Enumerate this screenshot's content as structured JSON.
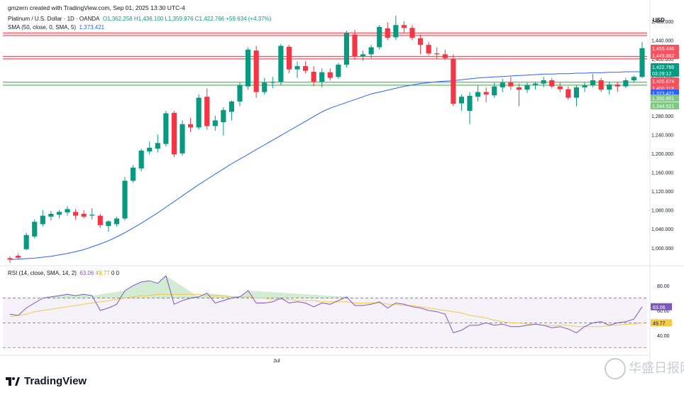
{
  "header": {
    "creator_line": "gmzern created with TradingView.com, Sep 01, 2025 13:30 UTC-4",
    "currency": "USD"
  },
  "legend": {
    "main": {
      "symbol": "Platinum / U.S. Dollar · 1D · OANDA",
      "open": "O1,362.258",
      "high": "H1,436.100",
      "low": "L1,359.976",
      "close": "C1,422.766",
      "change": "+59.634 (+4.37%)"
    },
    "sma": {
      "label": "SMA (50, close, 0, SMA, 5)",
      "value": "1,373.421"
    },
    "rsi": {
      "label": "RSI (14, close, SMA, 14, 2)",
      "value1": "63.06",
      "value2": "49.77",
      "value3": "0",
      "value4": "0"
    }
  },
  "footer": {
    "brand": "TradingView",
    "watermark": "华盛日报网"
  },
  "colors": {
    "up": "#089981",
    "down": "#f23645",
    "sma": "#2962ff",
    "rsi": "#7e57c2",
    "rsi_ma": "#f7c948",
    "resistance": "#f23645",
    "support": "#4caf50"
  },
  "chart_data": [
    {
      "type": "candlestick",
      "title": "Platinum / U.S. Dollar · 1D · OANDA",
      "y_axis": {
        "ticks": [
          "1,480.000",
          "1,440.000",
          "1,400.000",
          "1,360.000",
          "1,320.000",
          "1,280.000",
          "1,240.000",
          "1,200.000",
          "1,160.000",
          "1,120.000",
          "1,080.000",
          "1,040.000",
          "1,000.000"
        ],
        "range": [
          965,
          1495
        ]
      },
      "x_axis": {
        "labels": [
          "Jul"
        ]
      },
      "price_labels": [
        {
          "text": "1,455.446",
          "kind": "resistance",
          "value": 1455.446
        },
        {
          "text": "1,449.882",
          "kind": "resistance",
          "value": 1449.882
        },
        {
          "text": "1,422.766",
          "kind": "last",
          "value": 1422.766
        },
        {
          "text": "03:29:12",
          "kind": "countdown",
          "value": 1422.766
        },
        {
          "text": "1,405.674",
          "kind": "resistance",
          "value": 1405.674
        },
        {
          "text": "1,400.113",
          "kind": "resistance",
          "value": 1400.113
        },
        {
          "text": "1,373.421",
          "kind": "sma",
          "value": 1373.421
        },
        {
          "text": "1,350.951",
          "kind": "support",
          "value": 1350.951
        },
        {
          "text": "1,344.521",
          "kind": "support",
          "value": 1344.521
        }
      ],
      "zones": [
        {
          "kind": "resistance",
          "from": 1449.882,
          "to": 1455.446
        },
        {
          "kind": "resistance",
          "from": 1400.113,
          "to": 1405.674
        },
        {
          "kind": "support",
          "from": 1344.521,
          "to": 1350.951
        }
      ],
      "candles": [
        {
          "o": 978,
          "h": 982,
          "l": 968,
          "c": 975
        },
        {
          "o": 983,
          "h": 988,
          "l": 975,
          "c": 979
        },
        {
          "o": 997,
          "h": 1032,
          "l": 995,
          "c": 1027
        },
        {
          "o": 1024,
          "h": 1060,
          "l": 1020,
          "c": 1055
        },
        {
          "o": 1050,
          "h": 1080,
          "l": 1045,
          "c": 1068
        },
        {
          "o": 1066,
          "h": 1078,
          "l": 1058,
          "c": 1072
        },
        {
          "o": 1070,
          "h": 1080,
          "l": 1062,
          "c": 1076
        },
        {
          "o": 1075,
          "h": 1088,
          "l": 1068,
          "c": 1082
        },
        {
          "o": 1076,
          "h": 1082,
          "l": 1060,
          "c": 1068
        },
        {
          "o": 1072,
          "h": 1080,
          "l": 1062,
          "c": 1066
        },
        {
          "o": 1068,
          "h": 1084,
          "l": 1060,
          "c": 1070
        },
        {
          "o": 1068,
          "h": 1072,
          "l": 1042,
          "c": 1048
        },
        {
          "o": 1046,
          "h": 1058,
          "l": 1034,
          "c": 1056
        },
        {
          "o": 1050,
          "h": 1066,
          "l": 1045,
          "c": 1062
        },
        {
          "o": 1062,
          "h": 1150,
          "l": 1058,
          "c": 1142
        },
        {
          "o": 1142,
          "h": 1175,
          "l": 1138,
          "c": 1170
        },
        {
          "o": 1168,
          "h": 1210,
          "l": 1162,
          "c": 1206
        },
        {
          "o": 1204,
          "h": 1225,
          "l": 1198,
          "c": 1212
        },
        {
          "o": 1210,
          "h": 1240,
          "l": 1202,
          "c": 1222
        },
        {
          "o": 1220,
          "h": 1290,
          "l": 1215,
          "c": 1285
        },
        {
          "o": 1286,
          "h": 1290,
          "l": 1192,
          "c": 1198
        },
        {
          "o": 1200,
          "h": 1270,
          "l": 1195,
          "c": 1262
        },
        {
          "o": 1262,
          "h": 1275,
          "l": 1245,
          "c": 1255
        },
        {
          "o": 1255,
          "h": 1325,
          "l": 1250,
          "c": 1318
        },
        {
          "o": 1320,
          "h": 1338,
          "l": 1250,
          "c": 1258
        },
        {
          "o": 1258,
          "h": 1280,
          "l": 1248,
          "c": 1270
        },
        {
          "o": 1266,
          "h": 1298,
          "l": 1238,
          "c": 1292
        },
        {
          "o": 1288,
          "h": 1312,
          "l": 1270,
          "c": 1310
        },
        {
          "o": 1310,
          "h": 1350,
          "l": 1300,
          "c": 1345
        },
        {
          "o": 1342,
          "h": 1425,
          "l": 1335,
          "c": 1420
        },
        {
          "o": 1418,
          "h": 1428,
          "l": 1318,
          "c": 1330
        },
        {
          "o": 1330,
          "h": 1360,
          "l": 1325,
          "c": 1350
        },
        {
          "o": 1350,
          "h": 1362,
          "l": 1338,
          "c": 1352
        },
        {
          "o": 1352,
          "h": 1432,
          "l": 1345,
          "c": 1428
        },
        {
          "o": 1426,
          "h": 1430,
          "l": 1370,
          "c": 1378
        },
        {
          "o": 1378,
          "h": 1395,
          "l": 1360,
          "c": 1385
        },
        {
          "o": 1385,
          "h": 1395,
          "l": 1370,
          "c": 1375
        },
        {
          "o": 1373,
          "h": 1385,
          "l": 1342,
          "c": 1352
        },
        {
          "o": 1352,
          "h": 1380,
          "l": 1340,
          "c": 1372
        },
        {
          "o": 1372,
          "h": 1380,
          "l": 1355,
          "c": 1360
        },
        {
          "o": 1362,
          "h": 1392,
          "l": 1358,
          "c": 1388
        },
        {
          "o": 1388,
          "h": 1460,
          "l": 1382,
          "c": 1455
        },
        {
          "o": 1452,
          "h": 1462,
          "l": 1398,
          "c": 1406
        },
        {
          "o": 1406,
          "h": 1418,
          "l": 1396,
          "c": 1410
        },
        {
          "o": 1410,
          "h": 1430,
          "l": 1402,
          "c": 1425
        },
        {
          "o": 1425,
          "h": 1472,
          "l": 1420,
          "c": 1468
        },
        {
          "o": 1465,
          "h": 1478,
          "l": 1440,
          "c": 1445
        },
        {
          "o": 1446,
          "h": 1492,
          "l": 1440,
          "c": 1472
        },
        {
          "o": 1472,
          "h": 1480,
          "l": 1456,
          "c": 1466
        },
        {
          "o": 1466,
          "h": 1472,
          "l": 1440,
          "c": 1445
        },
        {
          "o": 1444,
          "h": 1452,
          "l": 1410,
          "c": 1430
        },
        {
          "o": 1430,
          "h": 1436,
          "l": 1408,
          "c": 1412
        },
        {
          "o": 1412,
          "h": 1425,
          "l": 1400,
          "c": 1410
        },
        {
          "o": 1410,
          "h": 1420,
          "l": 1398,
          "c": 1402
        },
        {
          "o": 1400,
          "h": 1410,
          "l": 1300,
          "c": 1305
        },
        {
          "o": 1306,
          "h": 1325,
          "l": 1290,
          "c": 1320
        },
        {
          "o": 1290,
          "h": 1330,
          "l": 1262,
          "c": 1322
        },
        {
          "o": 1320,
          "h": 1345,
          "l": 1310,
          "c": 1330
        },
        {
          "o": 1330,
          "h": 1340,
          "l": 1308,
          "c": 1325
        },
        {
          "o": 1323,
          "h": 1350,
          "l": 1318,
          "c": 1342
        },
        {
          "o": 1340,
          "h": 1358,
          "l": 1330,
          "c": 1350
        },
        {
          "o": 1350,
          "h": 1362,
          "l": 1335,
          "c": 1342
        },
        {
          "o": 1340,
          "h": 1348,
          "l": 1300,
          "c": 1335
        },
        {
          "o": 1335,
          "h": 1350,
          "l": 1328,
          "c": 1345
        },
        {
          "o": 1345,
          "h": 1352,
          "l": 1335,
          "c": 1348
        },
        {
          "o": 1348,
          "h": 1362,
          "l": 1340,
          "c": 1355
        },
        {
          "o": 1355,
          "h": 1360,
          "l": 1338,
          "c": 1342
        },
        {
          "o": 1342,
          "h": 1350,
          "l": 1330,
          "c": 1336
        },
        {
          "o": 1336,
          "h": 1342,
          "l": 1314,
          "c": 1318
        },
        {
          "o": 1318,
          "h": 1345,
          "l": 1300,
          "c": 1340
        },
        {
          "o": 1340,
          "h": 1350,
          "l": 1330,
          "c": 1344
        },
        {
          "o": 1345,
          "h": 1368,
          "l": 1340,
          "c": 1355
        },
        {
          "o": 1355,
          "h": 1360,
          "l": 1330,
          "c": 1335
        },
        {
          "o": 1335,
          "h": 1352,
          "l": 1325,
          "c": 1346
        },
        {
          "o": 1346,
          "h": 1352,
          "l": 1330,
          "c": 1342
        },
        {
          "o": 1342,
          "h": 1360,
          "l": 1338,
          "c": 1355
        },
        {
          "o": 1355,
          "h": 1365,
          "l": 1350,
          "c": 1362
        },
        {
          "o": 1362,
          "h": 1436,
          "l": 1360,
          "c": 1423
        }
      ],
      "sma50": [
        975,
        976,
        977,
        978,
        980,
        982,
        985,
        988,
        992,
        996,
        1002,
        1008,
        1015,
        1023,
        1032,
        1042,
        1052,
        1063,
        1074,
        1086,
        1098,
        1110,
        1122,
        1134,
        1145,
        1156,
        1167,
        1178,
        1188,
        1198,
        1208,
        1218,
        1228,
        1238,
        1248,
        1258,
        1268,
        1278,
        1288,
        1296,
        1302,
        1308,
        1314,
        1320,
        1326,
        1330,
        1334,
        1338,
        1342,
        1345,
        1348,
        1350,
        1352,
        1353,
        1354,
        1356,
        1358,
        1360,
        1361,
        1362,
        1363,
        1364,
        1365,
        1366,
        1367,
        1368,
        1368,
        1369,
        1369,
        1370,
        1370,
        1371,
        1371,
        1372,
        1372,
        1373,
        1373,
        1373
      ]
    },
    {
      "type": "line",
      "title": "RSI (14, close, SMA, 14, 2)",
      "y_axis": {
        "ticks": [
          "80.00",
          "60.00",
          "40.00"
        ],
        "range": [
          25,
          95
        ]
      },
      "levels": {
        "upper": 70,
        "middle": 50,
        "lower": 30
      },
      "series": [
        {
          "name": "RSI",
          "values": [
            57,
            56,
            62,
            66,
            70,
            71,
            72,
            73,
            72,
            73,
            72,
            60,
            62,
            65,
            76,
            80,
            83,
            84,
            82,
            88,
            65,
            68,
            70,
            71,
            74,
            66,
            68,
            70,
            71,
            76,
            66,
            66,
            67,
            70,
            66,
            67,
            66,
            63,
            66,
            65,
            68,
            71,
            64,
            64,
            65,
            67,
            62,
            66,
            65,
            63,
            62,
            60,
            59,
            57,
            42,
            44,
            48,
            48,
            50,
            48,
            49,
            47,
            47,
            48,
            49,
            48,
            46,
            47,
            45,
            42,
            47,
            50,
            51,
            48,
            50,
            51,
            53,
            63
          ]
        },
        {
          "name": "RSI MA",
          "values": [
            55,
            56,
            57,
            59,
            60,
            61,
            62,
            63,
            64,
            65,
            66,
            67,
            68,
            69,
            70,
            71,
            72,
            72,
            73,
            73,
            73,
            73,
            73,
            73,
            72,
            72,
            72,
            71,
            71,
            71,
            70,
            70,
            69,
            69,
            69,
            68,
            68,
            68,
            67,
            67,
            67,
            67,
            66,
            66,
            66,
            66,
            65,
            65,
            64,
            64,
            63,
            62,
            61,
            60,
            59,
            58,
            56,
            55,
            54,
            52,
            51,
            50,
            50,
            49,
            49,
            48,
            48,
            48,
            48,
            47,
            47,
            47,
            47,
            48,
            48,
            49,
            49,
            50
          ]
        }
      ]
    }
  ]
}
